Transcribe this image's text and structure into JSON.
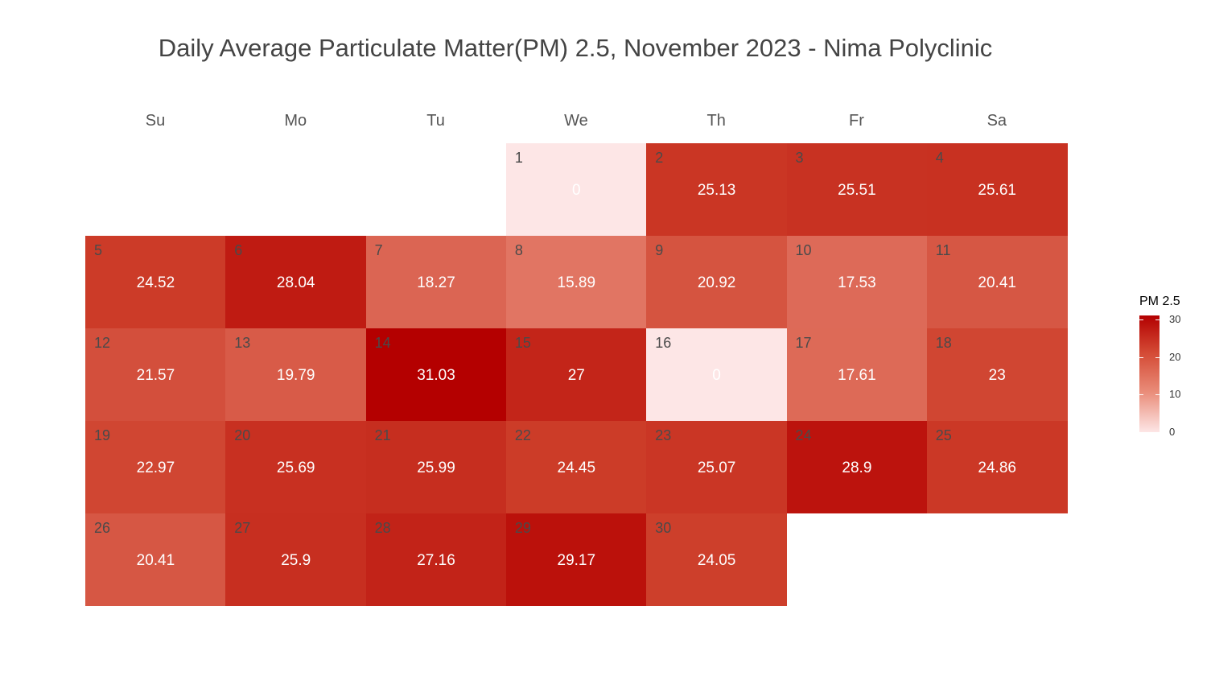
{
  "chart_data": {
    "type": "heatmap",
    "title": "Daily Average Particulate Matter(PM) 2.5, November 2023 - Nima Polyclinic",
    "weekdays": [
      "Su",
      "Mo",
      "Tu",
      "We",
      "Th",
      "Fr",
      "Sa"
    ],
    "first_weekday_index": 3,
    "days": [
      {
        "day": 1,
        "value": 0
      },
      {
        "day": 2,
        "value": 25.13
      },
      {
        "day": 3,
        "value": 25.51
      },
      {
        "day": 4,
        "value": 25.61
      },
      {
        "day": 5,
        "value": 24.52
      },
      {
        "day": 6,
        "value": 28.04
      },
      {
        "day": 7,
        "value": 18.27
      },
      {
        "day": 8,
        "value": 15.89
      },
      {
        "day": 9,
        "value": 20.92
      },
      {
        "day": 10,
        "value": 17.53
      },
      {
        "day": 11,
        "value": 20.41
      },
      {
        "day": 12,
        "value": 21.57
      },
      {
        "day": 13,
        "value": 19.79
      },
      {
        "day": 14,
        "value": 31.03
      },
      {
        "day": 15,
        "value": 27
      },
      {
        "day": 16,
        "value": 0
      },
      {
        "day": 17,
        "value": 17.61
      },
      {
        "day": 18,
        "value": 23
      },
      {
        "day": 19,
        "value": 22.97
      },
      {
        "day": 20,
        "value": 25.69
      },
      {
        "day": 21,
        "value": 25.99
      },
      {
        "day": 22,
        "value": 24.45
      },
      {
        "day": 23,
        "value": 25.07
      },
      {
        "day": 24,
        "value": 28.9
      },
      {
        "day": 25,
        "value": 24.86
      },
      {
        "day": 26,
        "value": 20.41
      },
      {
        "day": 27,
        "value": 25.9
      },
      {
        "day": 28,
        "value": 27.16
      },
      {
        "day": 29,
        "value": 29.17
      },
      {
        "day": 30,
        "value": 24.05
      }
    ],
    "legend": {
      "title": "PM 2.5",
      "ticks": [
        0,
        10,
        20,
        30
      ],
      "range": [
        0,
        31.03
      ],
      "placement": "right",
      "low_color": "#fde6e6",
      "high_color": "#b30000"
    },
    "grid": false
  }
}
